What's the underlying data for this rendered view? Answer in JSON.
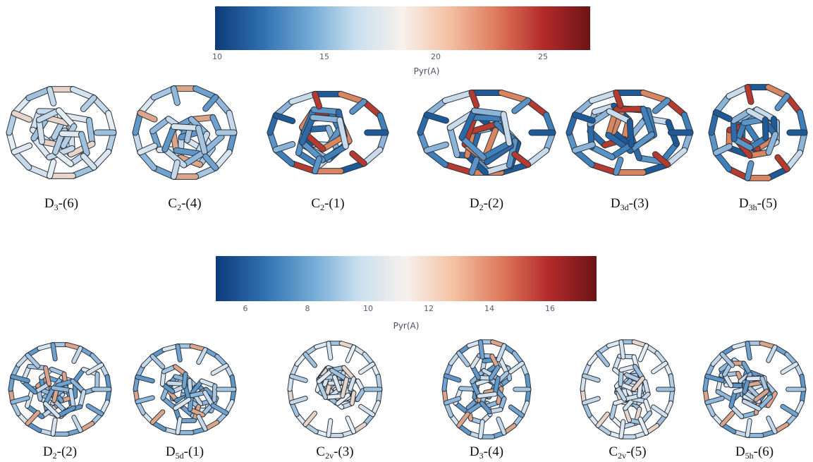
{
  "colorbars": [
    {
      "ticks": [
        "10",
        "15",
        "20",
        "25"
      ],
      "label": "Pyr(A)"
    },
    {
      "ticks": [
        "6",
        "8",
        "10",
        "12",
        "14",
        "16"
      ],
      "label": "Pyr(A)"
    }
  ],
  "gradient_colors": [
    "#0d3b7a",
    "#2f6fb0",
    "#6fa8d4",
    "#c9dfee",
    "#f7f1ec",
    "#f4c1a2",
    "#de7a5c",
    "#b42a2b",
    "#6b1416"
  ],
  "molecules_top": [
    {
      "sym": "D",
      "sub": "3",
      "suffix": "-(6)",
      "style": "light"
    },
    {
      "sym": "C",
      "sub": "2",
      "suffix": "-(4)",
      "style": "mid"
    },
    {
      "sym": "C",
      "sub": "2",
      "suffix": "-(1)",
      "style": "dark"
    },
    {
      "sym": "D",
      "sub": "2",
      "suffix": "-(2)",
      "style": "dark"
    },
    {
      "sym": "D",
      "sub": "3d",
      "suffix": "-(3)",
      "style": "dark"
    },
    {
      "sym": "D",
      "sub": "3h",
      "suffix": "-(5)",
      "style": "dark"
    }
  ],
  "molecules_bottom": [
    {
      "sym": "D",
      "sub": "2",
      "suffix": "-(2)",
      "style": "mid"
    },
    {
      "sym": "D",
      "sub": "5d",
      "suffix": "-(1)",
      "style": "mid"
    },
    {
      "sym": "C",
      "sub": "2v",
      "suffix": "-(3)",
      "style": "light"
    },
    {
      "sym": "D",
      "sub": "3",
      "suffix": "-(4)",
      "style": "mid"
    },
    {
      "sym": "C",
      "sub": "2v",
      "suffix": "-(5)",
      "style": "light"
    },
    {
      "sym": "D",
      "sub": "5h",
      "suffix": "-(6)",
      "style": "mid"
    }
  ]
}
